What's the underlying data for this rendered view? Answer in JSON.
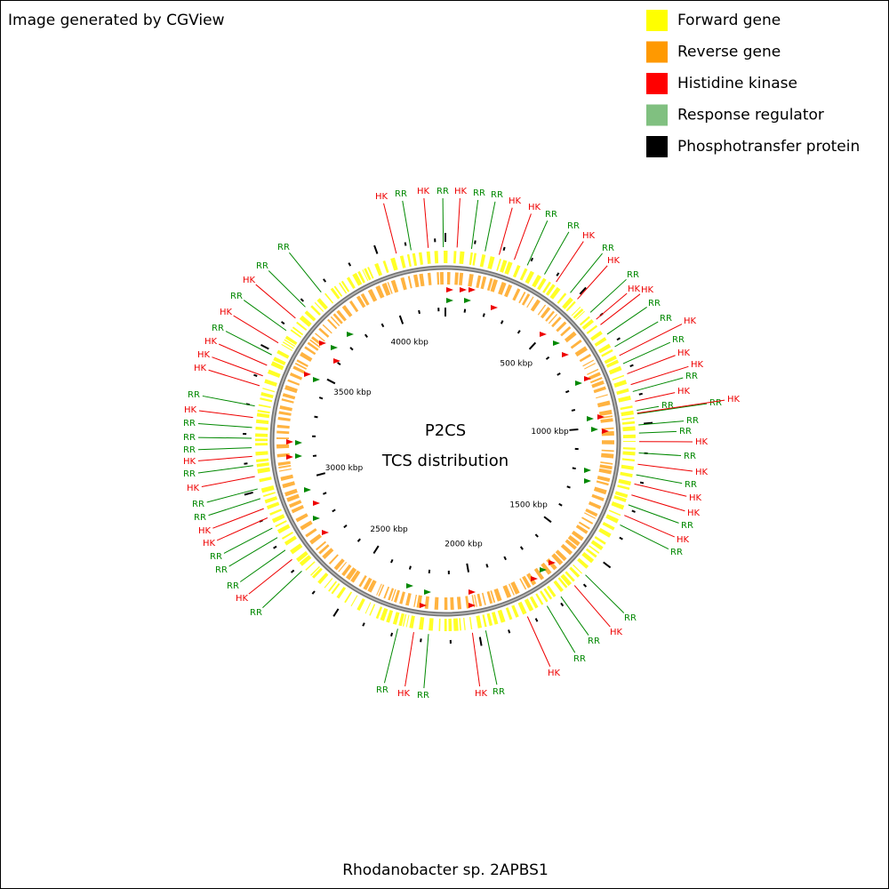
{
  "header": "Image generated by CGView",
  "legend": [
    {
      "label": "Forward gene",
      "color": "#ffff00"
    },
    {
      "label": "Reverse gene",
      "color": "#ff9900"
    },
    {
      "label": "Histidine kinase",
      "color": "#ff0000"
    },
    {
      "label": "Response regulator",
      "color": "#80c080"
    },
    {
      "label": "Phosphotransfer protein",
      "color": "#000000"
    }
  ],
  "center_title": [
    "P2CS",
    "TCS distribution"
  ],
  "scale_labels": [
    "500 kbp",
    "1000 kbp",
    "1500 kbp",
    "2000 kbp",
    "2500 kbp",
    "3000 kbp",
    "3500 kbp",
    "4000 kbp"
  ],
  "features": [
    {
      "label": "HK",
      "color": "#ee0000"
    },
    {
      "label": "RR",
      "color": "#008800"
    },
    {
      "label": "HK",
      "color": "#ee0000"
    },
    {
      "label": "RR",
      "color": "#008800"
    },
    {
      "label": "HK",
      "color": "#ee0000"
    },
    {
      "label": "RR",
      "color": "#008800"
    },
    {
      "label": "RR",
      "color": "#008800"
    },
    {
      "label": "HK",
      "color": "#ee0000"
    },
    {
      "label": "HK",
      "color": "#ee0000"
    },
    {
      "label": "RR",
      "color": "#008800"
    },
    {
      "label": "RR",
      "color": "#008800"
    },
    {
      "label": "HK",
      "color": "#ee0000"
    },
    {
      "label": "RR",
      "color": "#008800"
    },
    {
      "label": "HK",
      "color": "#ee0000"
    },
    {
      "label": "RR",
      "color": "#008800"
    },
    {
      "label": "HK",
      "color": "#ee0000"
    },
    {
      "label": "HK",
      "color": "#ee0000"
    },
    {
      "label": "RR",
      "color": "#008800"
    },
    {
      "label": "RR",
      "color": "#008800"
    },
    {
      "label": "HK",
      "color": "#ee0000"
    },
    {
      "label": "RR",
      "color": "#008800"
    },
    {
      "label": "HK",
      "color": "#ee0000"
    },
    {
      "label": "HK",
      "color": "#ee0000"
    },
    {
      "label": "RR",
      "color": "#008800"
    },
    {
      "label": "HK",
      "color": "#ee0000"
    },
    {
      "label": "RR",
      "color": "#008800"
    },
    {
      "label": "RR",
      "color": "#008800"
    },
    {
      "label": "HK",
      "color": "#ee0000"
    },
    {
      "label": "RR",
      "color": "#008800"
    },
    {
      "label": "RR",
      "color": "#008800"
    },
    {
      "label": "HK",
      "color": "#ee0000"
    },
    {
      "label": "RR",
      "color": "#008800"
    },
    {
      "label": "HK",
      "color": "#ee0000"
    },
    {
      "label": "RR",
      "color": "#008800"
    },
    {
      "label": "HK",
      "color": "#ee0000"
    },
    {
      "label": "HK",
      "color": "#ee0000"
    },
    {
      "label": "RR",
      "color": "#008800"
    },
    {
      "label": "HK",
      "color": "#ee0000"
    },
    {
      "label": "RR",
      "color": "#008800"
    },
    {
      "label": "RR",
      "color": "#008800"
    },
    {
      "label": "HK",
      "color": "#ee0000"
    },
    {
      "label": "RR",
      "color": "#008800"
    },
    {
      "label": "RR",
      "color": "#008800"
    },
    {
      "label": "HK",
      "color": "#ee0000"
    },
    {
      "label": "HK",
      "color": "#ee0000"
    },
    {
      "label": "RR",
      "color": "#008800"
    },
    {
      "label": "HK",
      "color": "#ee0000"
    },
    {
      "label": "RR",
      "color": "#008800"
    },
    {
      "label": "RR",
      "color": "#008800"
    },
    {
      "label": "RR",
      "color": "#008800"
    },
    {
      "label": "HK",
      "color": "#ee0000"
    },
    {
      "label": "RR",
      "color": "#008800"
    },
    {
      "label": "RR",
      "color": "#008800"
    },
    {
      "label": "RR",
      "color": "#008800"
    },
    {
      "label": "HK",
      "color": "#ee0000"
    },
    {
      "label": "HK",
      "color": "#ee0000"
    },
    {
      "label": "RR",
      "color": "#008800"
    },
    {
      "label": "RR",
      "color": "#008800"
    },
    {
      "label": "HK",
      "color": "#ee0000"
    },
    {
      "label": "RR",
      "color": "#008800"
    },
    {
      "label": "HK",
      "color": "#ee0000"
    },
    {
      "label": "RR",
      "color": "#008800"
    },
    {
      "label": "RR",
      "color": "#008800"
    },
    {
      "label": "RR",
      "color": "#008800"
    },
    {
      "label": "HK",
      "color": "#ee0000"
    },
    {
      "label": "RR",
      "color": "#008800"
    },
    {
      "label": "HK",
      "color": "#ee0000"
    },
    {
      "label": "HK",
      "color": "#ee0000"
    },
    {
      "label": "HK",
      "color": "#ee0000"
    },
    {
      "label": "RR",
      "color": "#008800"
    },
    {
      "label": "HK",
      "color": "#ee0000"
    },
    {
      "label": "RR",
      "color": "#008800"
    },
    {
      "label": "HK",
      "color": "#ee0000"
    },
    {
      "label": "RR",
      "color": "#008800"
    },
    {
      "label": "RR",
      "color": "#008800"
    }
  ],
  "footer": "Rhodanobacter sp. 2APBS1"
}
